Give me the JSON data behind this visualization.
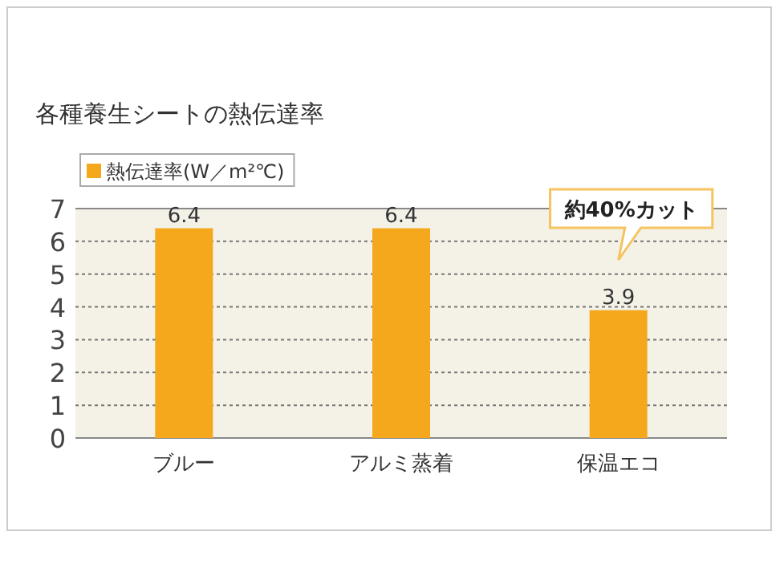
{
  "chart_data": {
    "type": "bar",
    "title": "各種養生シートの熱伝達率",
    "categories": [
      "ブルー",
      "アルミ蒸着",
      "保温エコ"
    ],
    "series": [
      {
        "name": "熱伝達率(W／m²℃)",
        "color": "#f5a81c",
        "values": [
          6.4,
          6.4,
          3.9
        ]
      }
    ],
    "ylim": [
      0,
      7
    ],
    "yticks": [
      0,
      1,
      2,
      3,
      4,
      5,
      6,
      7
    ],
    "grid": "y",
    "legend": "top left",
    "data_labels": true,
    "annotations": [
      "約40%カット"
    ]
  }
}
